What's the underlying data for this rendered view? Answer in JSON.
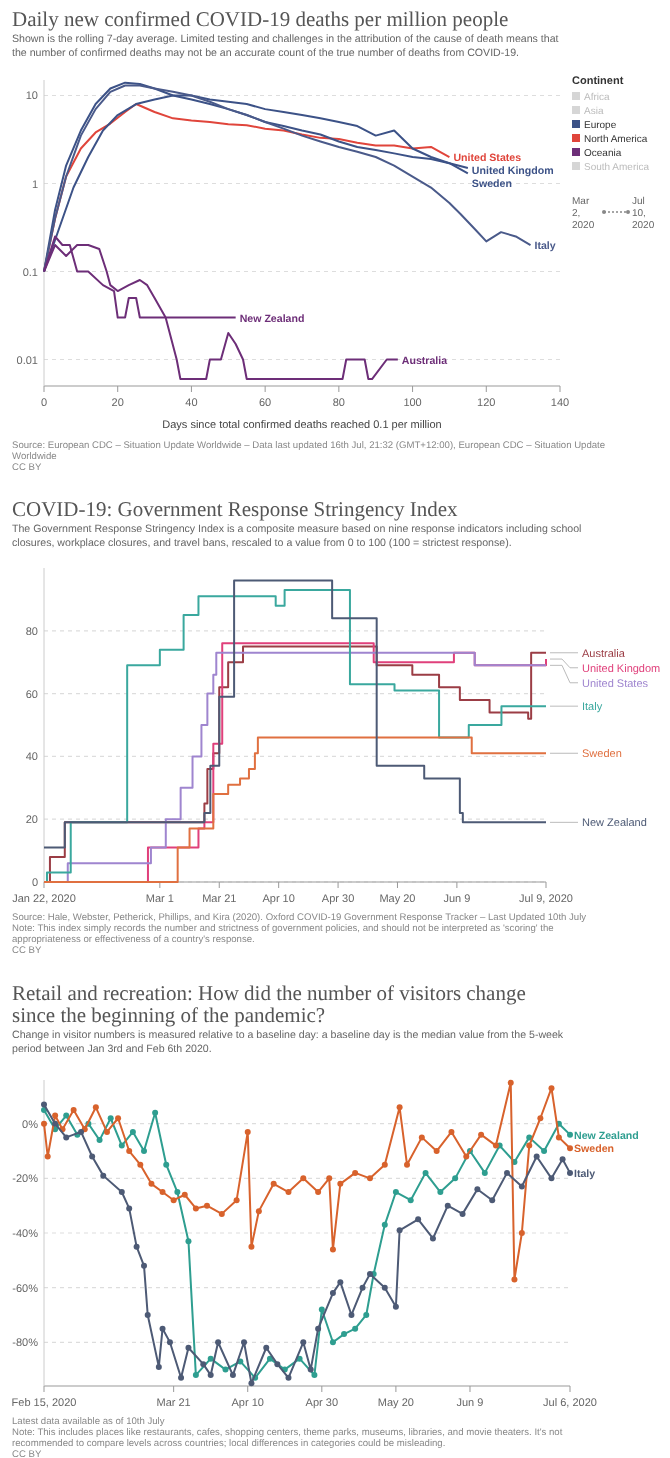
{
  "chart_data": [
    {
      "type": "line",
      "title": "Daily new confirmed COVID-19 deaths per million people",
      "subtitle": "Shown is the rolling 7-day average. Limited testing and challenges in the attribution of the cause of death means that the number of confirmed deaths may not be an accurate count of the true number of deaths from COVID-19.",
      "xlabel": "Days since total confirmed deaths reached 0.1 per million",
      "legend_title": "Continent",
      "log": true,
      "grid": "y",
      "xlim": [
        0,
        140
      ],
      "xticks": [
        0,
        20,
        40,
        60,
        80,
        100,
        120,
        140
      ],
      "ylim": [
        0.005,
        15
      ],
      "yticks": [
        0.01,
        0.1,
        1,
        10
      ],
      "annotations": [
        "Africa",
        "Asia",
        "Europe",
        "North America",
        "Oceania",
        "South America",
        "Mar 2, 2020",
        "Jul 10, 2020",
        "Source: European CDC – Situation Update Worldwide – Data last updated 16th Jul, 21:32 (GMT+12:00), European CDC – Situation Update Worldwide",
        "CC BY"
      ],
      "series": [
        {
          "name": "United States",
          "color": "#e0453b",
          "x": [
            0,
            3,
            6,
            10,
            14,
            18,
            22,
            25,
            30,
            35,
            40,
            45,
            50,
            55,
            60,
            65,
            70,
            75,
            80,
            85,
            90,
            95,
            100,
            105,
            110
          ],
          "values": [
            0.1,
            0.4,
            1.2,
            2.5,
            3.8,
            4.8,
            6.5,
            8,
            6.5,
            5.5,
            5.2,
            5,
            4.7,
            4.6,
            4.2,
            4,
            3.6,
            3.3,
            3.2,
            2.9,
            2.7,
            2.7,
            2.5,
            2.6,
            2
          ]
        },
        {
          "name": "United Kingdom",
          "color": "#3c5287",
          "x": [
            0,
            3,
            6,
            10,
            14,
            18,
            22,
            26,
            30,
            35,
            40,
            45,
            50,
            55,
            60,
            65,
            70,
            75,
            80,
            85,
            90,
            95,
            100,
            105,
            110,
            115
          ],
          "values": [
            0.1,
            0.5,
            1.6,
            4,
            8,
            12,
            14,
            13.5,
            12,
            10,
            9,
            8,
            7,
            6,
            5,
            4.5,
            4,
            3.6,
            3,
            2.6,
            2.4,
            2.2,
            2,
            1.9,
            1.7,
            1.5
          ]
        },
        {
          "name": "Sweden",
          "color": "#3c5287",
          "x": [
            0,
            4,
            8,
            12,
            16,
            20,
            25,
            30,
            35,
            40,
            45,
            50,
            55,
            60,
            65,
            70,
            75,
            80,
            85,
            90,
            95,
            100,
            105,
            110,
            115
          ],
          "values": [
            0.1,
            0.3,
            0.9,
            2,
            4,
            6,
            8,
            9,
            10,
            10,
            9,
            8.5,
            8,
            7,
            6.5,
            6,
            5.5,
            5,
            4.5,
            3.5,
            4,
            2.5,
            2,
            1.7,
            1.3
          ]
        },
        {
          "name": "Italy",
          "color": "#4a5a8a",
          "x": [
            0,
            3,
            6,
            10,
            14,
            18,
            22,
            26,
            30,
            35,
            40,
            45,
            50,
            55,
            60,
            65,
            70,
            75,
            80,
            85,
            90,
            95,
            100,
            105,
            110,
            113,
            117,
            120,
            124,
            128,
            132
          ],
          "values": [
            0.1,
            0.4,
            1.2,
            3.5,
            7,
            11,
            13,
            13,
            12,
            11,
            10,
            8.5,
            7,
            6,
            5,
            4.2,
            3.5,
            3,
            2.6,
            2.3,
            2,
            1.6,
            1.2,
            0.9,
            0.6,
            0.45,
            0.3,
            0.22,
            0.28,
            0.25,
            0.2
          ]
        },
        {
          "name": "New Zealand",
          "color": "#6d2e78",
          "x": [
            0,
            3,
            5,
            7,
            9,
            12,
            16,
            19,
            20,
            22,
            23,
            25,
            26,
            52
          ],
          "values": [
            0.1,
            0.25,
            0.2,
            0.2,
            0.1,
            0.1,
            0.07,
            0.06,
            0.03,
            0.03,
            0.05,
            0.05,
            0.03,
            0.03
          ]
        },
        {
          "name": "Australia",
          "color": "#6d2e78",
          "x": [
            0,
            3,
            6,
            9,
            12,
            15,
            17,
            18,
            20,
            23,
            26,
            28,
            30,
            33,
            36,
            37,
            44,
            45,
            48,
            50,
            52,
            54,
            55,
            81,
            82,
            87,
            88,
            89,
            93,
            96
          ],
          "values": [
            0.1,
            0.2,
            0.15,
            0.2,
            0.2,
            0.18,
            0.1,
            0.07,
            0.06,
            0.07,
            0.08,
            0.07,
            0.05,
            0.03,
            0.01,
            0.006,
            0.006,
            0.01,
            0.01,
            0.02,
            0.015,
            0.01,
            0.006,
            0.006,
            0.01,
            0.01,
            0.006,
            0.006,
            0.01,
            0.01
          ]
        }
      ]
    },
    {
      "type": "step",
      "title": "COVID-19: Government Response Stringency Index",
      "subtitle": "The Government Response Stringency Index is a composite measure based on nine response indicators including school closures, workplace closures, and travel bans, rescaled to a value from 0 to 100 (100 = strictest response).",
      "grid": "y",
      "xlim": [
        "2020-01-22",
        "2020-07-09"
      ],
      "xticks": [
        {
          "value": "2020-01-22",
          "label": "Jan 22, 2020"
        },
        {
          "value": "2020-03-01",
          "label": "Mar 1"
        },
        {
          "value": "2020-03-21",
          "label": "Mar 21"
        },
        {
          "value": "2020-04-10",
          "label": "Apr 10"
        },
        {
          "value": "2020-04-30",
          "label": "Apr 30"
        },
        {
          "value": "2020-05-20",
          "label": "May 20"
        },
        {
          "value": "2020-06-09",
          "label": "Jun 9"
        },
        {
          "value": "2020-07-09",
          "label": "Jul 9, 2020"
        }
      ],
      "ylim": [
        0,
        100
      ],
      "yticks": [
        0,
        20,
        40,
        60,
        80
      ],
      "annotations": [
        "Source: Hale, Webster, Petherick, Phillips, and Kira (2020). Oxford COVID-19 Government Response Tracker – Last Updated 10th July",
        "Note: This index simply records the number and strictness of government policies, and should not be interpreted as 'scoring' the appropriateness or effectiveness of a country's response.",
        "CC BY"
      ],
      "series": [
        {
          "name": "Australia",
          "color": "#9b3d45",
          "x": [
            "2020-01-22",
            "2020-01-24",
            "2020-01-29",
            "2020-03-16",
            "2020-03-17",
            "2020-03-19",
            "2020-03-21",
            "2020-03-24",
            "2020-03-29",
            "2020-05-13",
            "2020-05-25",
            "2020-06-03",
            "2020-06-10",
            "2020-06-20",
            "2020-07-03",
            "2020-07-04",
            "2020-07-09"
          ],
          "values": [
            0,
            8,
            19,
            25,
            36,
            41,
            62,
            70,
            75,
            69,
            66,
            62,
            58,
            54,
            52,
            73,
            73
          ]
        },
        {
          "name": "United Kingdom",
          "color": "#e0407b",
          "x": [
            "2020-01-22",
            "2020-02-26",
            "2020-03-14",
            "2020-03-16",
            "2020-03-19",
            "2020-03-22",
            "2020-05-12",
            "2020-06-08",
            "2020-06-15",
            "2020-07-09"
          ],
          "values": [
            0,
            11,
            17,
            19,
            44,
            76,
            70,
            73,
            69,
            71
          ]
        },
        {
          "name": "United States",
          "color": "#9f85cf",
          "x": [
            "2020-01-22",
            "2020-01-30",
            "2020-02-27",
            "2020-03-03",
            "2020-03-08",
            "2020-03-12",
            "2020-03-15",
            "2020-03-17",
            "2020-03-19",
            "2020-03-20",
            "2020-06-15",
            "2020-07-09"
          ],
          "values": [
            0,
            6,
            11,
            20,
            30,
            40,
            50,
            60,
            66,
            73,
            69,
            69
          ]
        },
        {
          "name": "Italy",
          "color": "#3aa89e",
          "x": [
            "2020-01-22",
            "2020-01-23",
            "2020-01-31",
            "2020-02-19",
            "2020-03-01",
            "2020-03-09",
            "2020-03-14",
            "2020-04-09",
            "2020-04-12",
            "2020-05-04",
            "2020-05-19",
            "2020-06-03",
            "2020-06-13",
            "2020-06-24",
            "2020-07-09"
          ],
          "values": [
            0,
            3,
            19,
            69,
            74,
            85,
            91,
            88,
            93,
            63,
            61,
            46,
            50,
            56,
            56
          ]
        },
        {
          "name": "Sweden",
          "color": "#e07040",
          "x": [
            "2020-01-22",
            "2020-03-07",
            "2020-03-11",
            "2020-03-19",
            "2020-03-24",
            "2020-03-28",
            "2020-03-31",
            "2020-04-02",
            "2020-04-03",
            "2020-06-14",
            "2020-07-09"
          ],
          "values": [
            0,
            11,
            17,
            28,
            31,
            33,
            36,
            41,
            46,
            41,
            41
          ]
        },
        {
          "name": "New Zealand",
          "color": "#4d5a75",
          "x": [
            "2020-01-22",
            "2020-01-29",
            "2020-03-16",
            "2020-03-18",
            "2020-03-21",
            "2020-03-26",
            "2020-04-28",
            "2020-05-13",
            "2020-05-29",
            "2020-06-10",
            "2020-06-11",
            "2020-07-09"
          ],
          "values": [
            11,
            19,
            22,
            37,
            59,
            96,
            84,
            37,
            33,
            22,
            19,
            19
          ]
        }
      ]
    },
    {
      "type": "line",
      "title": "Retail and recreation: How did the number of visitors change since the beginning of the pandemic?",
      "subtitle": "Change in visitor numbers is measured relative to a baseline day: a baseline day is the median value from the 5-week period between Jan 3rd and Feb 6th 2020.",
      "grid": "y",
      "marker": "circle",
      "xlim": [
        "2020-02-15",
        "2020-07-06"
      ],
      "xticks": [
        {
          "value": "2020-02-15",
          "label": "Feb 15, 2020"
        },
        {
          "value": "2020-03-21",
          "label": "Mar 21"
        },
        {
          "value": "2020-04-10",
          "label": "Apr 10"
        },
        {
          "value": "2020-04-30",
          "label": "Apr 30"
        },
        {
          "value": "2020-05-20",
          "label": "May 20"
        },
        {
          "value": "2020-06-09",
          "label": "Jun 9"
        },
        {
          "value": "2020-07-06",
          "label": "Jul 6, 2020"
        }
      ],
      "ylim": [
        -96,
        16
      ],
      "yticks": [
        {
          "value": -80,
          "label": "-80%"
        },
        {
          "value": -60,
          "label": "-60%"
        },
        {
          "value": -40,
          "label": "-40%"
        },
        {
          "value": -20,
          "label": "-20%"
        },
        {
          "value": 0,
          "label": "0%"
        }
      ],
      "annotations": [
        "Latest data available as of 10th July",
        "Note: This includes places like restaurants, cafes, shopping centers, theme parks, museums, libraries, and movie theaters. It's not recommended to compare levels across countries; local differences in categories could be misleading.",
        "CC BY"
      ],
      "series": [
        {
          "name": "New Zealand",
          "color": "#2e9e90",
          "x": [
            "2020-02-15",
            "2020-02-18",
            "2020-02-21",
            "2020-02-24",
            "2020-02-27",
            "2020-03-01",
            "2020-03-04",
            "2020-03-07",
            "2020-03-10",
            "2020-03-13",
            "2020-03-16",
            "2020-03-19",
            "2020-03-22",
            "2020-03-25",
            "2020-03-27",
            "2020-03-31",
            "2020-04-04",
            "2020-04-08",
            "2020-04-12",
            "2020-04-16",
            "2020-04-20",
            "2020-04-24",
            "2020-04-28",
            "2020-04-30",
            "2020-05-03",
            "2020-05-06",
            "2020-05-09",
            "2020-05-12",
            "2020-05-14",
            "2020-05-17",
            "2020-05-20",
            "2020-05-24",
            "2020-05-28",
            "2020-06-01",
            "2020-06-05",
            "2020-06-09",
            "2020-06-13",
            "2020-06-17",
            "2020-06-21",
            "2020-06-25",
            "2020-06-29",
            "2020-07-03",
            "2020-07-06"
          ],
          "values": [
            5,
            -2,
            3,
            -4,
            0,
            -6,
            2,
            -8,
            -3,
            -10,
            4,
            -15,
            -25,
            -43,
            -92,
            -86,
            -90,
            -87,
            -93,
            -86,
            -90,
            -86,
            -92,
            -68,
            -80,
            -77,
            -75,
            -70,
            -55,
            -37,
            -25,
            -28,
            -18,
            -25,
            -20,
            -10,
            -18,
            -8,
            -14,
            -5,
            -10,
            0,
            -4
          ]
        },
        {
          "name": "Sweden",
          "color": "#d8622c",
          "x": [
            "2020-02-15",
            "2020-02-16",
            "2020-02-18",
            "2020-02-20",
            "2020-02-23",
            "2020-02-26",
            "2020-02-29",
            "2020-03-03",
            "2020-03-06",
            "2020-03-09",
            "2020-03-12",
            "2020-03-15",
            "2020-03-18",
            "2020-03-21",
            "2020-03-24",
            "2020-03-27",
            "2020-03-30",
            "2020-04-03",
            "2020-04-07",
            "2020-04-10",
            "2020-04-11",
            "2020-04-13",
            "2020-04-17",
            "2020-04-21",
            "2020-04-25",
            "2020-04-29",
            "2020-05-02",
            "2020-05-03",
            "2020-05-05",
            "2020-05-09",
            "2020-05-13",
            "2020-05-17",
            "2020-05-21",
            "2020-05-23",
            "2020-05-27",
            "2020-05-31",
            "2020-06-04",
            "2020-06-08",
            "2020-06-12",
            "2020-06-16",
            "2020-06-20",
            "2020-06-21",
            "2020-06-23",
            "2020-06-25",
            "2020-06-28",
            "2020-07-01",
            "2020-07-03",
            "2020-07-06"
          ],
          "values": [
            0,
            -12,
            3,
            -2,
            5,
            -2,
            6,
            -3,
            2,
            -10,
            -15,
            -22,
            -25,
            -28,
            -26,
            -31,
            -30,
            -33,
            -28,
            -3,
            -45,
            -32,
            -22,
            -25,
            -20,
            -25,
            -20,
            -46,
            -22,
            -18,
            -20,
            -15,
            6,
            -15,
            -5,
            -10,
            -3,
            -12,
            -4,
            -8,
            15,
            -57,
            -40,
            -8,
            2,
            13,
            -5,
            -9
          ]
        },
        {
          "name": "Italy",
          "color": "#4d5a75",
          "x": [
            "2020-02-15",
            "2020-02-18",
            "2020-02-21",
            "2020-02-25",
            "2020-02-28",
            "2020-03-02",
            "2020-03-07",
            "2020-03-09",
            "2020-03-11",
            "2020-03-13",
            "2020-03-14",
            "2020-03-17",
            "2020-03-18",
            "2020-03-20",
            "2020-03-23",
            "2020-03-25",
            "2020-03-29",
            "2020-03-31",
            "2020-04-02",
            "2020-04-06",
            "2020-04-09",
            "2020-04-11",
            "2020-04-15",
            "2020-04-18",
            "2020-04-21",
            "2020-04-25",
            "2020-04-27",
            "2020-04-29",
            "2020-05-03",
            "2020-05-05",
            "2020-05-08",
            "2020-05-11",
            "2020-05-13",
            "2020-05-17",
            "2020-05-20",
            "2020-05-21",
            "2020-05-26",
            "2020-05-30",
            "2020-06-03",
            "2020-06-07",
            "2020-06-11",
            "2020-06-15",
            "2020-06-19",
            "2020-06-23",
            "2020-06-27",
            "2020-07-01",
            "2020-07-04",
            "2020-07-06"
          ],
          "values": [
            7,
            0,
            -5,
            -3,
            -12,
            -19,
            -25,
            -31,
            -45,
            -52,
            -70,
            -89,
            -75,
            -80,
            -93,
            -82,
            -88,
            -92,
            -80,
            -92,
            -80,
            -95,
            -82,
            -88,
            -93,
            -80,
            -90,
            -75,
            -62,
            -58,
            -70,
            -60,
            -55,
            -60,
            -67,
            -39,
            -35,
            -42,
            -30,
            -33,
            -24,
            -28,
            -18,
            -23,
            -12,
            -20,
            -13,
            -18
          ]
        }
      ]
    }
  ]
}
